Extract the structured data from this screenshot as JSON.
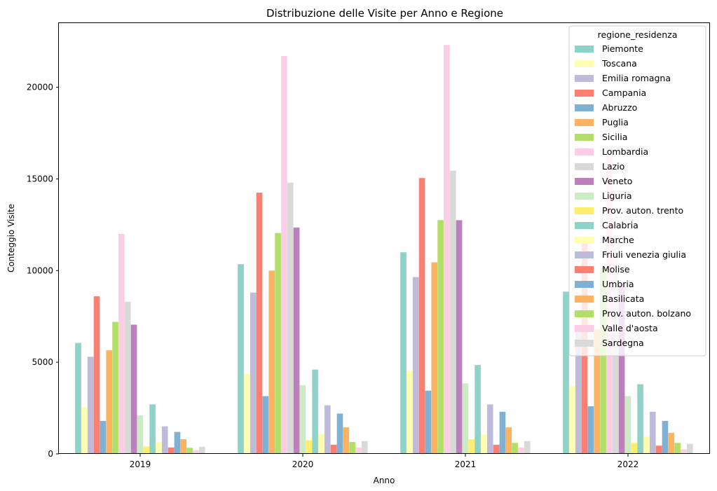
{
  "chart_data": {
    "type": "bar",
    "title": "Distribuzione delle Visite per Anno e Regione",
    "xlabel": "Anno",
    "ylabel": "Conteggio Visite",
    "categories": [
      "2019",
      "2020",
      "2021",
      "2022"
    ],
    "ylim": [
      0,
      23500
    ],
    "yticks": [
      0,
      5000,
      10000,
      15000,
      20000
    ],
    "grid": false,
    "legend": {
      "title": "regione_residenza",
      "placement": "top-right"
    },
    "series": [
      {
        "name": "Piemonte",
        "color": "#8dd3c7",
        "values": [
          6050,
          10350,
          11000,
          8850
        ]
      },
      {
        "name": "Toscana",
        "color": "#ffffb3",
        "values": [
          2550,
          4350,
          4550,
          3700
        ]
      },
      {
        "name": "Emilia romagna",
        "color": "#bebada",
        "values": [
          5300,
          8800,
          9650,
          6800
        ]
      },
      {
        "name": "Campania",
        "color": "#fb8072",
        "values": [
          8600,
          14250,
          15050,
          11700
        ]
      },
      {
        "name": "Abruzzo",
        "color": "#80b1d3",
        "values": [
          1800,
          3150,
          3450,
          2600
        ]
      },
      {
        "name": "Puglia",
        "color": "#fdb462",
        "values": [
          5650,
          10000,
          10450,
          6800
        ]
      },
      {
        "name": "Sicilia",
        "color": "#b3de69",
        "values": [
          7200,
          12050,
          12750,
          10150
        ]
      },
      {
        "name": "Lombardia",
        "color": "#fccde5",
        "values": [
          12000,
          21700,
          22300,
          16700
        ]
      },
      {
        "name": "Lazio",
        "color": "#d9d9d9",
        "values": [
          8300,
          14800,
          15450,
          11300
        ]
      },
      {
        "name": "Veneto",
        "color": "#bc80bd",
        "values": [
          7050,
          12350,
          12750,
          9300
        ]
      },
      {
        "name": "Liguria",
        "color": "#ccebc5",
        "values": [
          2100,
          3750,
          3850,
          3150
        ]
      },
      {
        "name": "Prov. auton. trento",
        "color": "#ffed6f",
        "values": [
          400,
          750,
          800,
          600
        ]
      },
      {
        "name": "Calabria",
        "color": "#8dd3c7",
        "values": [
          2700,
          4600,
          4850,
          3800
        ]
      },
      {
        "name": "Marche",
        "color": "#ffffb3",
        "values": [
          650,
          1100,
          1050,
          950
        ]
      },
      {
        "name": "Friuli venezia giulia",
        "color": "#bebada",
        "values": [
          1500,
          2650,
          2700,
          2300
        ]
      },
      {
        "name": "Molise",
        "color": "#fb8072",
        "values": [
          350,
          500,
          500,
          450
        ]
      },
      {
        "name": "Umbria",
        "color": "#80b1d3",
        "values": [
          1200,
          2200,
          2300,
          1800
        ]
      },
      {
        "name": "Basilicata",
        "color": "#fdb462",
        "values": [
          800,
          1450,
          1450,
          1150
        ]
      },
      {
        "name": "Prov. auton. bolzano",
        "color": "#b3de69",
        "values": [
          330,
          650,
          600,
          600
        ]
      },
      {
        "name": "Valle d'aosta",
        "color": "#fccde5",
        "values": [
          200,
          350,
          350,
          250
        ]
      },
      {
        "name": "Sardegna",
        "color": "#d9d9d9",
        "values": [
          380,
          700,
          700,
          550
        ]
      }
    ]
  }
}
